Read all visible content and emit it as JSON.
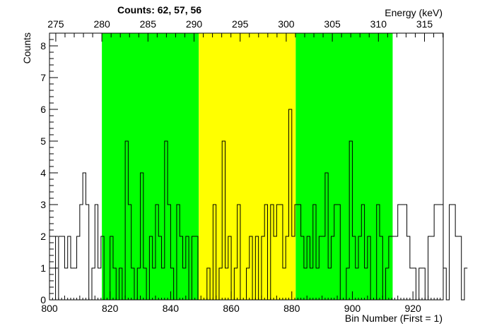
{
  "chart_data": {
    "type": "histogram",
    "title": "Counts:   62,   57,   56",
    "xlabel": "Bin Number (First = 1)",
    "ylabel": "Counts",
    "top_axis_label": "Energy (keV)",
    "xlim": [
      800,
      930
    ],
    "ylim": [
      0,
      8.4
    ],
    "x_ticks": [
      800,
      820,
      840,
      860,
      880,
      900,
      920
    ],
    "y_ticks": [
      0,
      1,
      2,
      3,
      4,
      5,
      6,
      7,
      8
    ],
    "top_ticks": [
      275,
      280,
      285,
      290,
      295,
      300,
      305,
      310,
      315
    ],
    "top_axis_map": {
      "energy_a": 280,
      "bin_a": 817.3,
      "energy_b": 310,
      "bin_b": 908.6
    },
    "bin_start": 800,
    "bin_width": 1,
    "counts": [
      2,
      2,
      0,
      2,
      2,
      1,
      2,
      1,
      1,
      2,
      3,
      4,
      3,
      0,
      1,
      3,
      1,
      2,
      0,
      0,
      2,
      1,
      0,
      1,
      0,
      5,
      3,
      1,
      0,
      1,
      4,
      1,
      0,
      2,
      1,
      3,
      2,
      1,
      5,
      3,
      1,
      0,
      3,
      2,
      1,
      2,
      0,
      2,
      2,
      0,
      0,
      0,
      1,
      0,
      3,
      0,
      1,
      5,
      1,
      2,
      0,
      1,
      3,
      0,
      0,
      1,
      2,
      0,
      2,
      0,
      2,
      3,
      0,
      3,
      2,
      3,
      3,
      1,
      2,
      6,
      2,
      3,
      3,
      2,
      1,
      2,
      1,
      3,
      1,
      2,
      2,
      4,
      1,
      2,
      3,
      3,
      0,
      0,
      1,
      5,
      2,
      1,
      2,
      3,
      1,
      2,
      0,
      0,
      3,
      2,
      0,
      1,
      2,
      2,
      2,
      3,
      3,
      3,
      2,
      1,
      1,
      0,
      1,
      1,
      0,
      2,
      2,
      3,
      3,
      3,
      1,
      0,
      3,
      3,
      2,
      2,
      0,
      1
    ],
    "regions": [
      {
        "from": 817.3,
        "to": 849.3,
        "color": "#00ff00",
        "count": 62
      },
      {
        "from": 849.3,
        "to": 881.3,
        "color": "#ffff00",
        "count": 57
      },
      {
        "from": 881.3,
        "to": 913.3,
        "color": "#00ff00",
        "count": 56
      }
    ],
    "line_color": "#000000",
    "grid": false
  }
}
